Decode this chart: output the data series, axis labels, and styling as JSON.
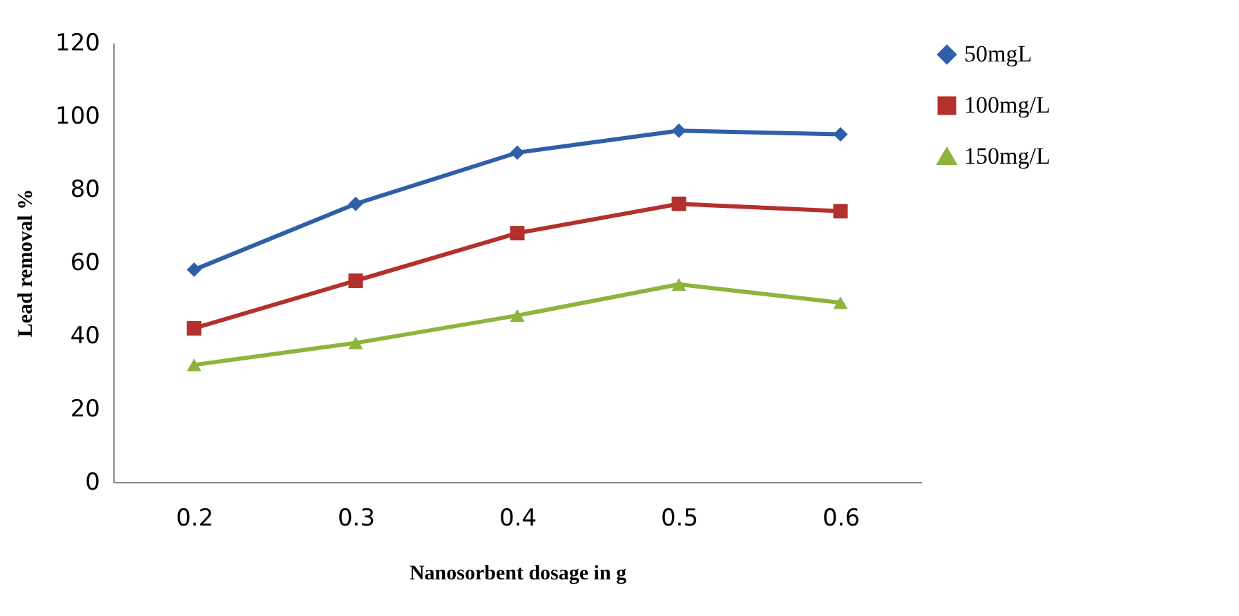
{
  "chart_data": {
    "type": "line",
    "xlabel": "Nanosorbent dosage in g",
    "ylabel": "Lead removal  %",
    "categories": [
      "0.2",
      "0.3",
      "0.4",
      "0.5",
      "0.6"
    ],
    "series": [
      {
        "name": "50mgL",
        "color": "#2e5fa8",
        "marker": "diamond",
        "values": [
          58,
          76,
          90,
          96,
          95
        ]
      },
      {
        "name": "100mg/L",
        "color": "#b3302c",
        "marker": "square",
        "values": [
          42,
          55,
          68,
          76,
          74
        ]
      },
      {
        "name": "150mg/L",
        "color": "#8db43c",
        "marker": "triangle",
        "values": [
          32,
          38,
          45.5,
          54,
          49
        ]
      }
    ],
    "ylim": [
      0,
      120
    ],
    "yticks": [
      0,
      20,
      40,
      60,
      80,
      100,
      120
    ],
    "grid": false,
    "legend": "right",
    "line_style": "solid"
  }
}
